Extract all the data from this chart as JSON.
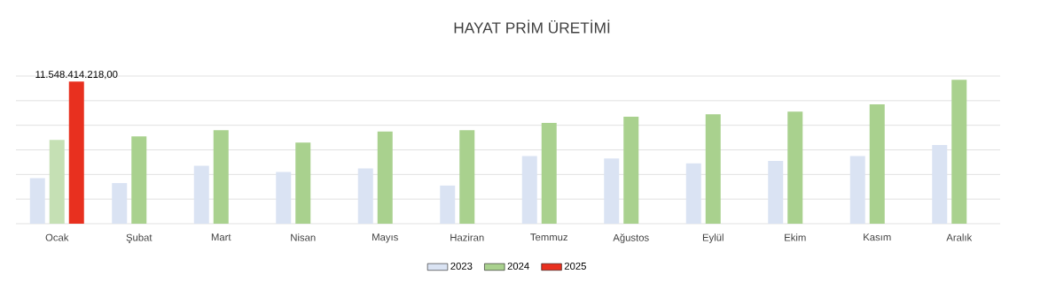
{
  "chart_data": {
    "type": "bar",
    "title": "HAYAT PRİM ÜRETİMİ",
    "categories": [
      "Ocak",
      "Şubat",
      "Mart",
      "Nisan",
      "Mayıs",
      "Haziran",
      "Temmuz",
      "Ağustos",
      "Eylül",
      "Ekim",
      "Kasım",
      "Aralık"
    ],
    "series": [
      {
        "name": "2023",
        "color": "#dae3f3",
        "values": [
          3700000000,
          3300000000,
          4700000000,
          4200000000,
          4500000000,
          3100000000,
          5500000000,
          5300000000,
          4900000000,
          5100000000,
          5500000000,
          6400000000
        ]
      },
      {
        "name": "2024",
        "color": "#a9d18e",
        "colors": [
          "#c5e0b4",
          "#a9d18e",
          "#a9d18e",
          "#a9d18e",
          "#a9d18e",
          "#a9d18e",
          "#a9d18e",
          "#a9d18e",
          "#a9d18e",
          "#a9d18e",
          "#a9d18e",
          "#a9d18e"
        ],
        "values": [
          6800000000,
          7100000000,
          7600000000,
          6600000000,
          7500000000,
          7600000000,
          8200000000,
          8700000000,
          8900000000,
          9100000000,
          9700000000,
          11700000000
        ]
      },
      {
        "name": "2025",
        "color": "#e8301f",
        "values": [
          11548414218,
          null,
          null,
          null,
          null,
          null,
          null,
          null,
          null,
          null,
          null,
          null
        ],
        "value_labels": [
          "11.548.414.218,00",
          null,
          null,
          null,
          null,
          null,
          null,
          null,
          null,
          null,
          null,
          null
        ]
      }
    ],
    "ylim": [
      0,
      12000000000
    ],
    "yticks": [
      {
        "value": 0,
        "label": null
      },
      {
        "value": 2000000000,
        "label": null
      },
      {
        "value": 4000000000,
        "label": null
      },
      {
        "value": 6000000000,
        "label": null
      },
      {
        "value": 8000000000,
        "label": null
      },
      {
        "value": 10000000000,
        "label": null
      },
      {
        "value": 12000000000,
        "label": null
      }
    ],
    "tick_labels": "x",
    "grid": "y",
    "legend": "bottom"
  }
}
